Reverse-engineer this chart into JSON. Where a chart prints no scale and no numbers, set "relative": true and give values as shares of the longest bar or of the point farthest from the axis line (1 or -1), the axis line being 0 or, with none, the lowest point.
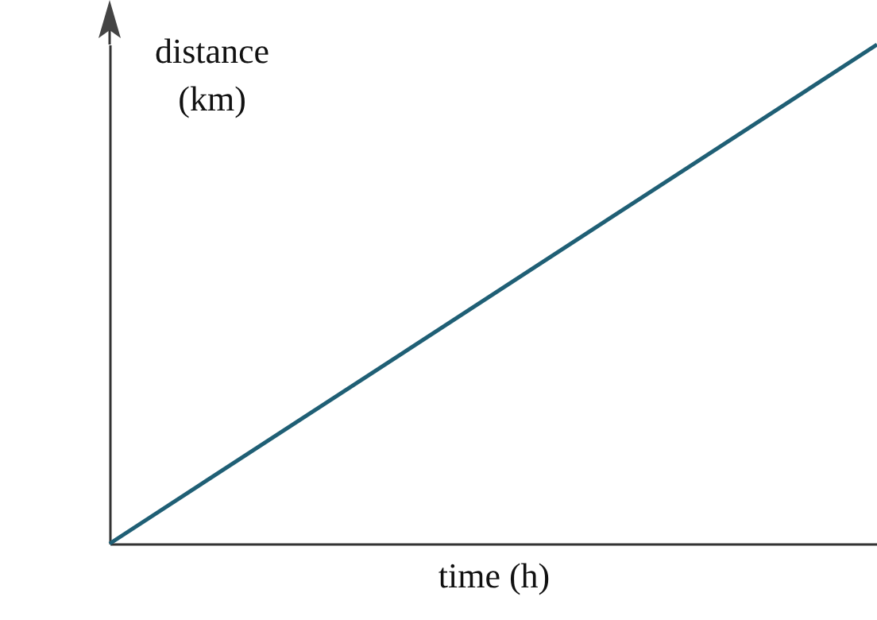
{
  "chart_data": {
    "type": "line",
    "relative": true,
    "xlabel": "time (h)",
    "ylabel": "distance (km)",
    "categories": [
      null,
      null
    ],
    "series": [
      {
        "color": "#1f5f75",
        "values": [
          0,
          1
        ]
      }
    ],
    "grid": false,
    "legend": false,
    "tick_labels": false,
    "marker": "none",
    "line_style": "solid"
  }
}
